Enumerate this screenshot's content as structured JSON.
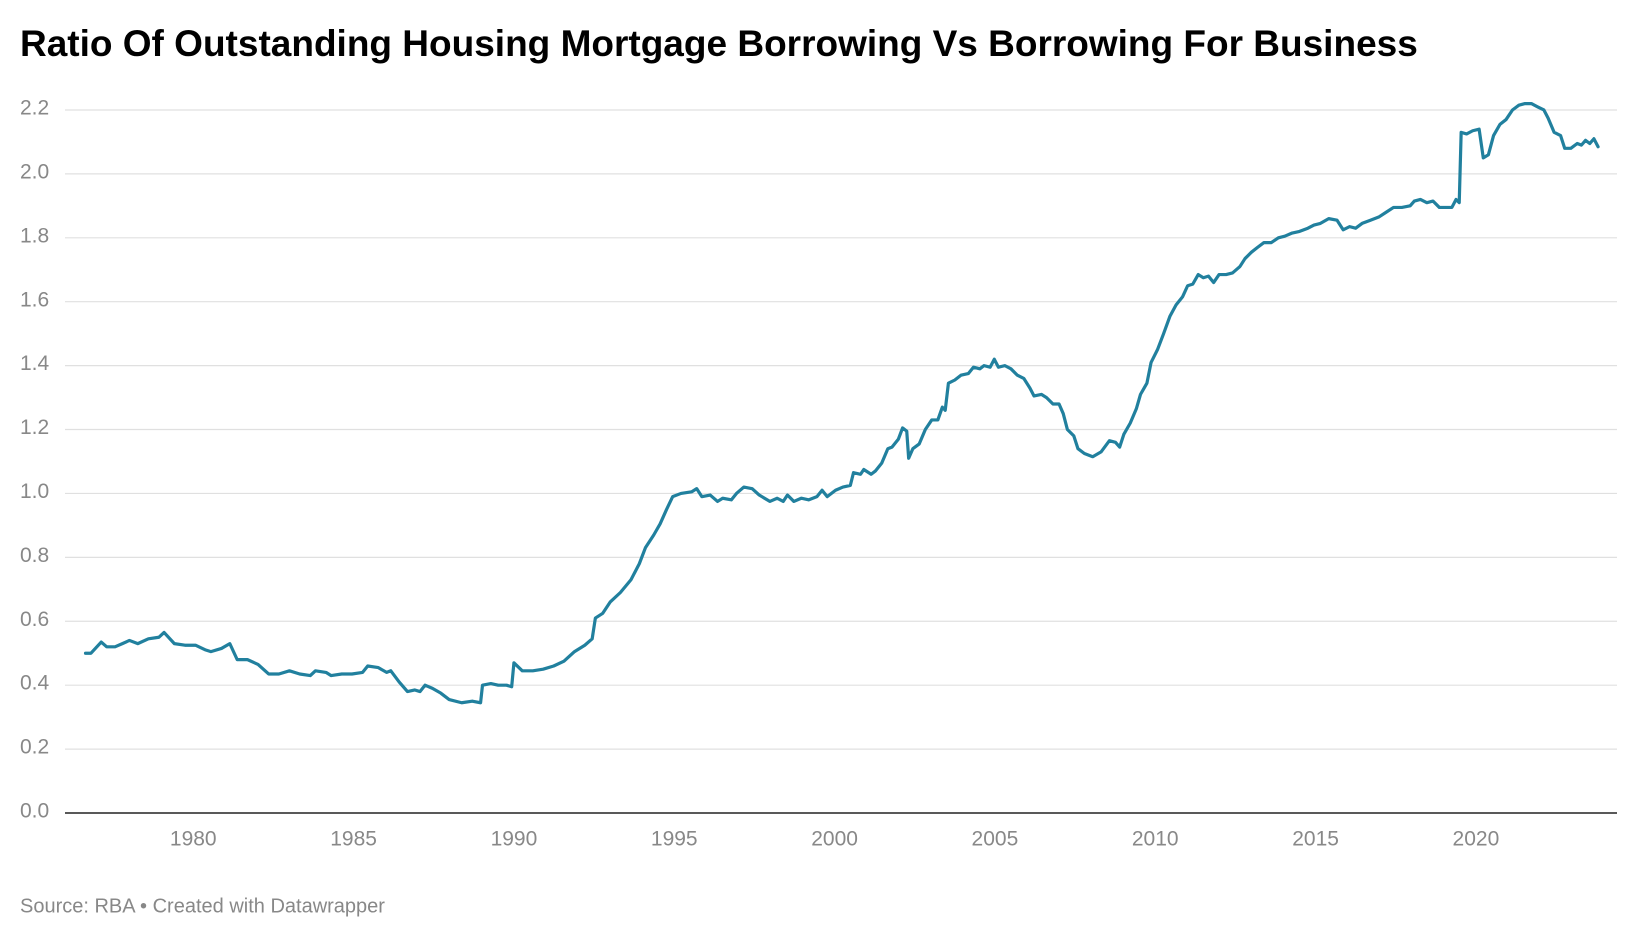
{
  "chart_data": {
    "type": "line",
    "title": "Ratio Of Outstanding Housing Mortgage Borrowing Vs Borrowing For Business",
    "source": "Source: RBA • Created with Datawrapper",
    "xlim": [
      1976,
      2024.4
    ],
    "xticks": [
      1980,
      1985,
      1990,
      1995,
      2000,
      2005,
      2010,
      2015,
      2020
    ],
    "ylim": [
      0,
      2.25
    ],
    "yticks": [
      {
        "value": 0,
        "label": "0.0"
      },
      0.2,
      0.4,
      0.6,
      0.8,
      {
        "value": 1,
        "label": "1.0"
      },
      1.2,
      1.4,
      1.6,
      1.8,
      {
        "value": 2,
        "label": "2.0"
      },
      2.2
    ],
    "grid": true,
    "color": "#21809e",
    "x": [
      1976.64,
      1976.81,
      1977.13,
      1977.3,
      1977.56,
      1977.79,
      1978.01,
      1978.27,
      1978.6,
      1978.93,
      1979.09,
      1979.41,
      1979.74,
      1980.07,
      1980.39,
      1980.55,
      1980.88,
      1981.14,
      1981.37,
      1981.69,
      1982.02,
      1982.35,
      1982.67,
      1983.0,
      1983.32,
      1983.65,
      1983.81,
      1984.14,
      1984.3,
      1984.63,
      1984.95,
      1985.28,
      1985.44,
      1985.77,
      1986.03,
      1986.16,
      1986.42,
      1986.68,
      1986.91,
      1987.07,
      1987.23,
      1987.46,
      1987.72,
      1987.98,
      1988.37,
      1988.7,
      1988.96,
      1989.02,
      1989.28,
      1989.51,
      1989.77,
      1989.93,
      1990.0,
      1990.26,
      1990.59,
      1990.91,
      1991.24,
      1991.56,
      1991.89,
      1992.21,
      1992.44,
      1992.54,
      1992.77,
      1993.0,
      1993.32,
      1993.65,
      1993.91,
      1994.1,
      1994.36,
      1994.56,
      1994.76,
      1994.95,
      1995.21,
      1995.54,
      1995.7,
      1995.86,
      1996.12,
      1996.35,
      1996.51,
      1996.78,
      1996.94,
      1997.17,
      1997.43,
      1997.65,
      1997.98,
      1998.21,
      1998.4,
      1998.53,
      1998.73,
      1998.96,
      1999.19,
      1999.45,
      1999.61,
      1999.77,
      2000.03,
      2000.26,
      2000.49,
      2000.59,
      2000.81,
      2000.91,
      2001.14,
      2001.27,
      2001.47,
      2001.66,
      2001.79,
      2001.99,
      2002.12,
      2002.25,
      2002.31,
      2002.44,
      2002.64,
      2002.83,
      2003.03,
      2003.22,
      2003.36,
      2003.45,
      2003.55,
      2003.75,
      2003.94,
      2004.17,
      2004.33,
      2004.53,
      2004.66,
      2004.85,
      2004.98,
      2005.11,
      2005.31,
      2005.5,
      2005.7,
      2005.9,
      2006.09,
      2006.22,
      2006.45,
      2006.61,
      2006.81,
      2007.0,
      2007.13,
      2007.26,
      2007.46,
      2007.59,
      2007.79,
      2008.05,
      2008.31,
      2008.57,
      2008.76,
      2008.89,
      2009.02,
      2009.22,
      2009.41,
      2009.54,
      2009.74,
      2009.87,
      2010.07,
      2010.26,
      2010.46,
      2010.65,
      2010.85,
      2011.01,
      2011.17,
      2011.34,
      2011.5,
      2011.66,
      2011.82,
      2011.99,
      2012.21,
      2012.41,
      2012.64,
      2012.8,
      2013.0,
      2013.19,
      2013.39,
      2013.62,
      2013.84,
      2014.04,
      2014.27,
      2014.5,
      2014.76,
      2014.95,
      2015.15,
      2015.41,
      2015.67,
      2015.86,
      2016.06,
      2016.25,
      2016.45,
      2016.71,
      2016.97,
      2017.2,
      2017.43,
      2017.69,
      2017.95,
      2018.08,
      2018.27,
      2018.47,
      2018.66,
      2018.86,
      2019.06,
      2019.25,
      2019.38,
      2019.48,
      2019.54,
      2019.71,
      2019.9,
      2020.1,
      2020.23,
      2020.39,
      2020.55,
      2020.75,
      2020.94,
      2021.14,
      2021.34,
      2021.53,
      2021.73,
      2021.92,
      2022.12,
      2022.25,
      2022.44,
      2022.64,
      2022.77,
      2022.96,
      2023.16,
      2023.29,
      2023.42,
      2023.55,
      2023.68,
      2023.81
    ],
    "values": [
      0.5,
      0.5,
      0.535,
      0.52,
      0.52,
      0.53,
      0.54,
      0.53,
      0.545,
      0.55,
      0.565,
      0.53,
      0.525,
      0.525,
      0.51,
      0.505,
      0.515,
      0.53,
      0.48,
      0.48,
      0.465,
      0.435,
      0.435,
      0.445,
      0.435,
      0.43,
      0.445,
      0.44,
      0.43,
      0.435,
      0.435,
      0.44,
      0.46,
      0.455,
      0.44,
      0.445,
      0.41,
      0.38,
      0.385,
      0.38,
      0.4,
      0.39,
      0.375,
      0.355,
      0.345,
      0.35,
      0.345,
      0.4,
      0.405,
      0.4,
      0.4,
      0.395,
      0.47,
      0.445,
      0.445,
      0.45,
      0.46,
      0.475,
      0.505,
      0.525,
      0.545,
      0.61,
      0.625,
      0.66,
      0.69,
      0.73,
      0.78,
      0.83,
      0.87,
      0.905,
      0.95,
      0.99,
      1.0,
      1.005,
      1.015,
      0.99,
      0.995,
      0.975,
      0.985,
      0.98,
      1.0,
      1.02,
      1.015,
      0.995,
      0.975,
      0.985,
      0.975,
      0.995,
      0.975,
      0.985,
      0.98,
      0.99,
      1.01,
      0.99,
      1.01,
      1.02,
      1.025,
      1.065,
      1.06,
      1.075,
      1.06,
      1.07,
      1.095,
      1.14,
      1.145,
      1.17,
      1.205,
      1.195,
      1.11,
      1.14,
      1.155,
      1.2,
      1.23,
      1.23,
      1.27,
      1.26,
      1.345,
      1.355,
      1.37,
      1.375,
      1.395,
      1.39,
      1.4,
      1.395,
      1.42,
      1.395,
      1.4,
      1.39,
      1.37,
      1.36,
      1.33,
      1.305,
      1.31,
      1.3,
      1.28,
      1.28,
      1.25,
      1.2,
      1.18,
      1.14,
      1.125,
      1.115,
      1.13,
      1.165,
      1.16,
      1.145,
      1.185,
      1.22,
      1.265,
      1.31,
      1.345,
      1.41,
      1.45,
      1.5,
      1.555,
      1.59,
      1.615,
      1.65,
      1.655,
      1.685,
      1.675,
      1.68,
      1.66,
      1.685,
      1.685,
      1.69,
      1.71,
      1.735,
      1.755,
      1.77,
      1.785,
      1.785,
      1.8,
      1.805,
      1.815,
      1.82,
      1.83,
      1.84,
      1.845,
      1.86,
      1.855,
      1.825,
      1.835,
      1.83,
      1.845,
      1.855,
      1.865,
      1.88,
      1.895,
      1.895,
      1.9,
      1.915,
      1.92,
      1.91,
      1.915,
      1.895,
      1.895,
      1.895,
      1.92,
      1.91,
      2.13,
      2.125,
      2.135,
      2.14,
      2.05,
      2.06,
      2.12,
      2.155,
      2.17,
      2.2,
      2.215,
      2.22,
      2.22,
      2.21,
      2.2,
      2.175,
      2.13,
      2.12,
      2.08,
      2.08,
      2.095,
      2.09,
      2.105,
      2.095,
      2.11,
      2.085
    ]
  }
}
